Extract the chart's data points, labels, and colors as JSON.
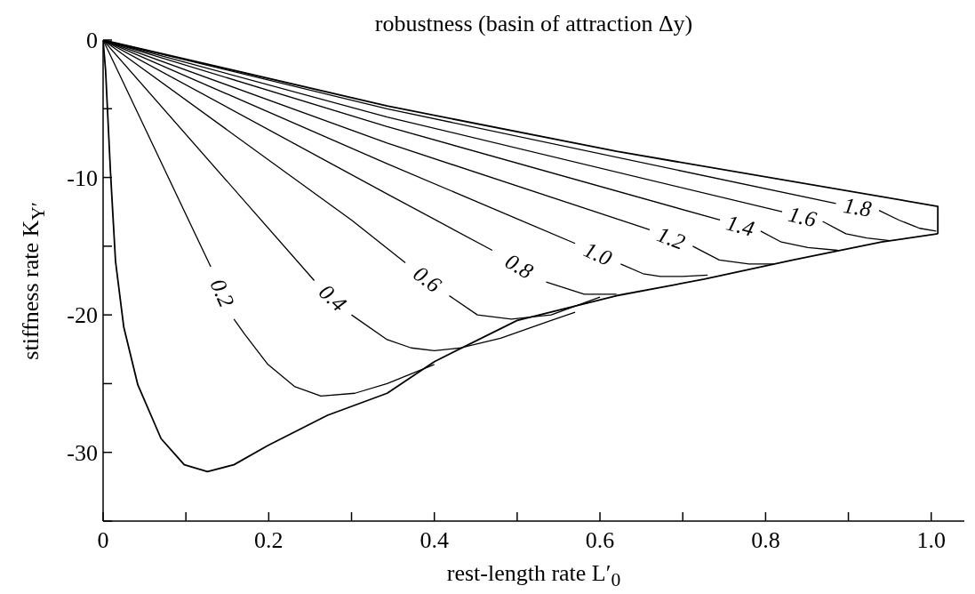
{
  "chart_data": {
    "type": "line",
    "title": "robustness (basin of attraction Δy)",
    "xlabel": "rest-length rate L′$_{0}$",
    "ylabel": "stiffness rate K$_{Y′}$",
    "xlim": [
      0,
      1.04
    ],
    "ylim": [
      -35,
      0
    ],
    "xticks": [
      0,
      {
        "value": 0.1,
        "label": null
      },
      0.2,
      {
        "value": 0.3,
        "label": null
      },
      0.4,
      {
        "value": 0.5,
        "label": null
      },
      0.6,
      {
        "value": 0.7,
        "label": null
      },
      0.8,
      {
        "value": 0.9,
        "label": null
      },
      {
        "value": 1,
        "label": "1.0"
      }
    ],
    "yticks": [
      {
        "value": -35,
        "label": null
      },
      -30,
      {
        "value": -25,
        "label": null
      },
      -20,
      {
        "value": -15,
        "label": null
      },
      -10,
      {
        "value": -5,
        "label": null
      },
      0
    ],
    "grid": false,
    "legend": false,
    "marker": "none",
    "line_style": "solid",
    "series": [
      {
        "color": "#000000",
        "x": [
          0,
          0.343,
          0.62,
          1.008,
          1.008
        ],
        "values": [
          0,
          -4.8,
          -8.1,
          -12.1,
          -14.1
        ]
      },
      {
        "color": "#000000",
        "x": [
          0,
          0.003,
          0.009,
          0.015,
          0.025,
          0.042,
          0.07,
          0.098,
          0.126,
          0.158,
          0.199,
          0.271,
          0.343,
          0.4,
          0.5,
          0.62,
          0.726,
          0.833,
          0.94,
          1.008
        ],
        "values": [
          0,
          -2.2,
          -9.7,
          -16.1,
          -20.9,
          -25.1,
          -29.0,
          -30.9,
          -31.4,
          -30.9,
          -29.5,
          -27.3,
          -25.7,
          -23.4,
          -20.4,
          -18.6,
          -17.4,
          -16.0,
          -14.7,
          -14.1
        ]
      },
      {
        "name": "0.2",
        "color": "#000000",
        "x": [
          0,
          0.13,
          0.144,
          0.158,
          0.171,
          0.199,
          0.231,
          0.263,
          0.304,
          0.343,
          0.4
        ],
        "values": [
          0,
          -16.5,
          null,
          -20.3,
          -21.4,
          -23.6,
          -25.2,
          -25.9,
          -25.7,
          -25.0,
          -23.6
        ]
      },
      {
        "name": "0.4",
        "color": "#000000",
        "x": [
          0,
          0.255,
          0.278,
          0.3,
          0.343,
          0.372,
          0.4,
          0.432,
          0.48,
          0.541,
          0.57
        ],
        "values": [
          0,
          -17.5,
          null,
          -20.0,
          -21.8,
          -22.4,
          -22.6,
          -22.4,
          -21.7,
          -20.4,
          -19.8
        ]
      },
      {
        "name": "0.6",
        "color": "#000000",
        "x": [
          0,
          0.3,
          0.365,
          0.39,
          0.418,
          0.452,
          0.493,
          0.541,
          0.6
        ],
        "values": [
          0,
          -13.1,
          -16.2,
          null,
          -18.6,
          -20.0,
          -20.3,
          -20.0,
          -18.7
        ]
      },
      {
        "name": "0.8",
        "color": "#000000",
        "x": [
          0,
          0.343,
          0.47,
          0.5,
          0.535,
          0.581,
          0.62
        ],
        "values": [
          0,
          -11.2,
          -15.3,
          null,
          -17.6,
          -18.5,
          -18.5
        ]
      },
      {
        "name": "1.0",
        "color": "#000000",
        "x": [
          0,
          0.343,
          0.57,
          0.598,
          0.625,
          0.652,
          0.673,
          0.7,
          0.73
        ],
        "values": [
          0,
          -9.0,
          -14.8,
          null,
          -16.3,
          -17.0,
          -17.2,
          -17.2,
          -17.1
        ]
      },
      {
        "name": "1.2",
        "color": "#000000",
        "x": [
          0,
          0.343,
          0.66,
          0.686,
          0.712,
          0.744,
          0.78,
          0.81
        ],
        "values": [
          0,
          -7.5,
          -13.8,
          null,
          -15.0,
          -16.0,
          -16.3,
          -16.3
        ]
      },
      {
        "name": "1.4",
        "color": "#000000",
        "x": [
          0,
          0.343,
          0.745,
          0.77,
          0.794,
          0.819,
          0.851,
          0.887
        ],
        "values": [
          0,
          -6.3,
          -13.1,
          null,
          -13.9,
          -14.7,
          -15.1,
          -15.3
        ]
      },
      {
        "name": "1.6",
        "color": "#000000",
        "x": [
          0,
          0.343,
          0.82,
          0.845,
          0.869,
          0.897,
          0.922,
          0.95
        ],
        "values": [
          0,
          -5.6,
          -12.5,
          null,
          -13.2,
          -14.1,
          -14.4,
          -14.6
        ]
      },
      {
        "name": "1.8",
        "color": "#000000",
        "x": [
          0,
          0.343,
          0.885,
          0.911,
          0.937,
          0.961,
          0.986,
          1.006
        ],
        "values": [
          0,
          -5.0,
          -11.9,
          null,
          -12.4,
          -13.1,
          -13.7,
          -13.9
        ]
      }
    ]
  }
}
